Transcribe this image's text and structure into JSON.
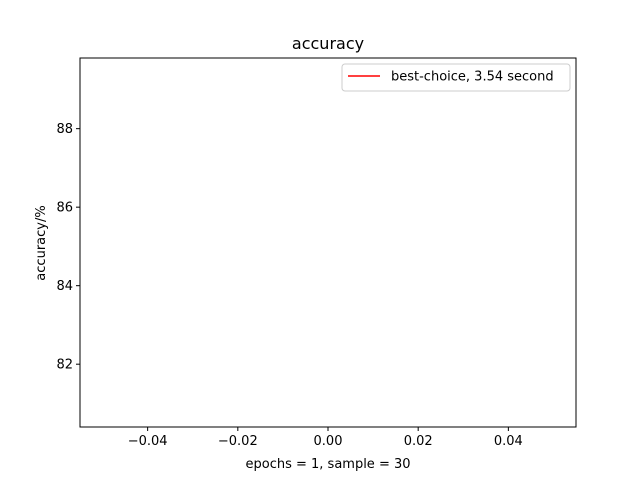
{
  "chart_data": {
    "type": "line",
    "title": "accuracy",
    "xlabel": "epochs = 1, sample = 30",
    "ylabel": "accuracy/%",
    "xlim": [
      -0.055,
      0.055
    ],
    "ylim": [
      80.4,
      89.8
    ],
    "xticks": [
      -0.04,
      -0.02,
      0.0,
      0.02,
      0.04
    ],
    "xtick_labels": [
      "−0.04",
      "−0.02",
      "0.00",
      "0.02",
      "0.04"
    ],
    "yticks": [
      82,
      84,
      86,
      88
    ],
    "ytick_labels": [
      "82",
      "84",
      "86",
      "88"
    ],
    "grid": false,
    "legend_position": "top-right",
    "series": [
      {
        "name": "best-choice, 3.54 second",
        "color": "#ff0000",
        "x": [],
        "y": []
      }
    ]
  }
}
